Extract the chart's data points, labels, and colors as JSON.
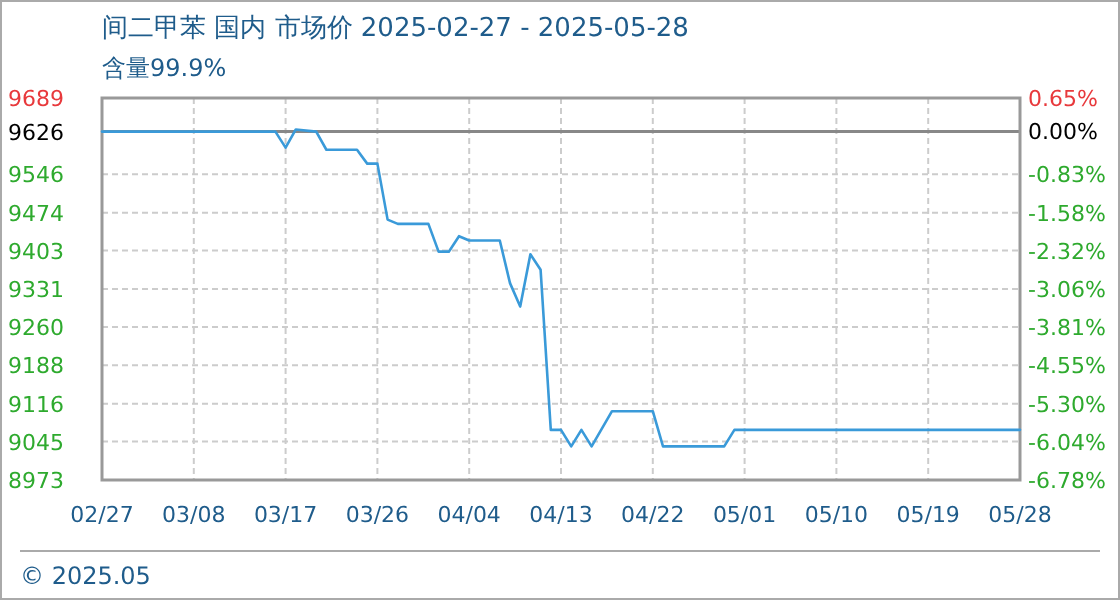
{
  "chart_data": {
    "type": "line",
    "title": "间二甲苯 国内 市场价 2025-02-27 - 2025-05-28",
    "subtitle": "含量99.9%",
    "annotations": [
      "© 2025.05"
    ],
    "x": [
      "2025-02-27",
      "2025-03-16",
      "2025-03-17",
      "2025-03-18",
      "2025-03-20",
      "2025-03-21",
      "2025-03-24",
      "2025-03-25",
      "2025-03-26",
      "2025-03-27",
      "2025-03-28",
      "2025-03-31",
      "2025-04-01",
      "2025-04-02",
      "2025-04-03",
      "2025-04-04",
      "2025-04-07",
      "2025-04-08",
      "2025-04-09",
      "2025-04-10",
      "2025-04-11",
      "2025-04-12",
      "2025-04-13",
      "2025-04-14",
      "2025-04-15",
      "2025-04-16",
      "2025-04-18",
      "2025-04-22",
      "2025-04-23",
      "2025-04-29",
      "2025-04-30",
      "2025-05-28"
    ],
    "series": [
      {
        "color": "#3a9ad9",
        "values": [
          9626,
          9626,
          9596,
          9630,
          9626,
          9592,
          9592,
          9566,
          9566,
          9461,
          9453,
          9453,
          9401,
          9401,
          9430,
          9422,
          9422,
          9342,
          9298,
          9396,
          9367,
          9067,
          9067,
          9036,
          9067,
          9036,
          9102,
          9102,
          9036,
          9036,
          9067,
          9067
        ]
      }
    ],
    "xlim": [
      "2025-02-27",
      "2025-05-28"
    ],
    "xticks": [
      {
        "value": "2025-02-27",
        "label": "02/27"
      },
      {
        "value": "2025-03-08",
        "label": "03/08"
      },
      {
        "value": "2025-03-17",
        "label": "03/17"
      },
      {
        "value": "2025-03-26",
        "label": "03/26"
      },
      {
        "value": "2025-04-04",
        "label": "04/04"
      },
      {
        "value": "2025-04-13",
        "label": "04/13"
      },
      {
        "value": "2025-04-22",
        "label": "04/22"
      },
      {
        "value": "2025-05-01",
        "label": "05/01"
      },
      {
        "value": "2025-05-10",
        "label": "05/10"
      },
      {
        "value": "2025-05-19",
        "label": "05/19"
      },
      {
        "value": "2025-05-28",
        "label": "05/28"
      }
    ],
    "ylim": [
      8973,
      9689
    ],
    "yticks": [
      8973,
      9045,
      9116,
      9188,
      9260,
      9331,
      9403,
      9474,
      9546,
      9626,
      9689
    ],
    "y2lim": [
      -6.78,
      0.65
    ],
    "y2ticks": [
      {
        "value": -6.78,
        "label": "-6.78%"
      },
      {
        "value": -6.04,
        "label": "-6.04%"
      },
      {
        "value": -5.3,
        "label": "-5.30%"
      },
      {
        "value": -4.55,
        "label": "-4.55%"
      },
      {
        "value": -3.81,
        "label": "-3.81%"
      },
      {
        "value": -3.06,
        "label": "-3.06%"
      },
      {
        "value": -2.32,
        "label": "-2.32%"
      },
      {
        "value": -1.58,
        "label": "-1.58%"
      },
      {
        "value": -0.83,
        "label": "-0.83%"
      },
      {
        "value": 0,
        "label": "0.00%"
      },
      {
        "value": 0.65,
        "label": "0.65%"
      }
    ],
    "ref_lines": [
      {
        "axis": "y",
        "value": 9626,
        "color": "#888888"
      }
    ],
    "grid": true,
    "marker": "none",
    "line_style": "solid"
  }
}
